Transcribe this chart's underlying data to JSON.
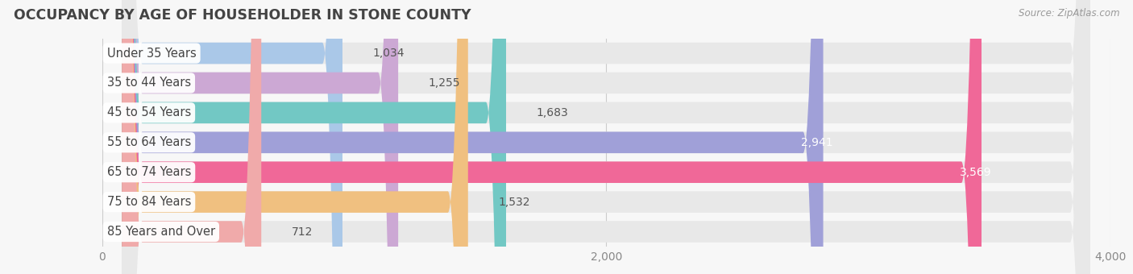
{
  "title": "OCCUPANCY BY AGE OF HOUSEHOLDER IN STONE COUNTY",
  "source": "Source: ZipAtlas.com",
  "categories": [
    "Under 35 Years",
    "35 to 44 Years",
    "45 to 54 Years",
    "55 to 64 Years",
    "65 to 74 Years",
    "75 to 84 Years",
    "85 Years and Over"
  ],
  "values": [
    1034,
    1255,
    1683,
    2941,
    3569,
    1532,
    712
  ],
  "bar_colors": [
    "#aac8e8",
    "#cca8d4",
    "#72c8c4",
    "#a0a0d8",
    "#f06898",
    "#f0c080",
    "#f0aaaa"
  ],
  "xlim": [
    0,
    4000
  ],
  "xticks": [
    0,
    2000,
    4000
  ],
  "background_color": "#f7f7f7",
  "bar_bg_color": "#e8e8e8",
  "title_fontsize": 12.5,
  "label_fontsize": 10.5,
  "value_fontsize": 10
}
